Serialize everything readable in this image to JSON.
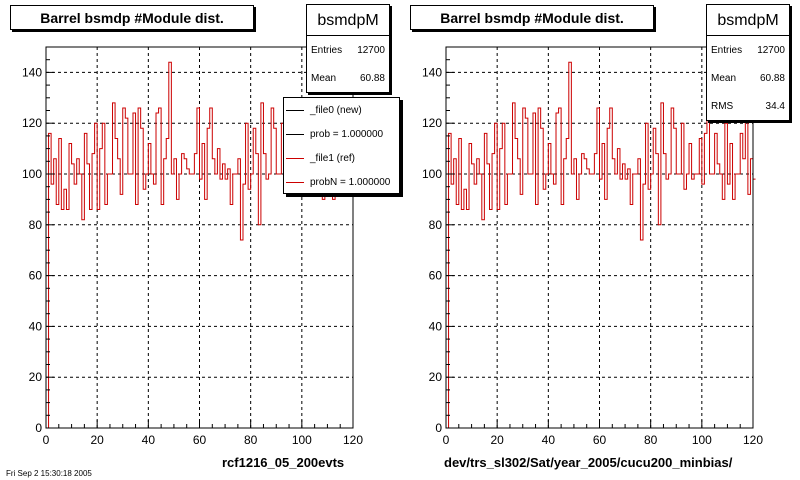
{
  "footer_stamp": "Fri Sep 2 15:30:18 2005",
  "chart_data": [
    {
      "type": "bar",
      "title": "Barrel bsmdp #Module dist.",
      "xlabel": "rcf1216_05_200evts",
      "ylabel": "",
      "xlim": [
        0,
        120
      ],
      "ylim": [
        0,
        150
      ],
      "xticks": [
        0,
        20,
        40,
        60,
        80,
        100,
        120
      ],
      "yticks": [
        0,
        20,
        40,
        60,
        80,
        100,
        120,
        140
      ],
      "grid": true,
      "stats": {
        "name": "bsmdpM",
        "rows": [
          {
            "label": "Entries",
            "value": "12700"
          },
          {
            "label": "Mean",
            "value": "60.88"
          }
        ]
      },
      "legend": {
        "placement": "top-right",
        "entries": [
          {
            "label": "_file0 (new)",
            "color": "#000000"
          },
          {
            "label": "prob = 1.000000",
            "color": "#000000"
          },
          {
            "label": "_file1 (ref)",
            "color": "#cc0000"
          },
          {
            "label": "probN = 1.000000",
            "color": "#cc0000"
          }
        ]
      },
      "series": [
        {
          "color": "#cc0000",
          "bin_width": 1,
          "x_start": 0,
          "values": [
            0,
            116,
            96,
            106,
            88,
            114,
            86,
            94,
            86,
            112,
            104,
            96,
            106,
            100,
            82,
            116,
            104,
            86,
            108,
            120,
            86,
            110,
            120,
            88,
            100,
            100,
            128,
            114,
            106,
            92,
            126,
            122,
            100,
            100,
            124,
            88,
            126,
            118,
            94,
            100,
            112,
            100,
            96,
            124,
            126,
            88,
            106,
            114,
            144,
            100,
            106,
            90,
            100,
            108,
            106,
            102,
            100,
            100,
            108,
            126,
            98,
            112,
            90,
            118,
            126,
            106,
            100,
            110,
            98,
            104,
            98,
            102,
            88,
            100,
            100,
            106,
            74,
            96,
            120,
            94,
            100,
            118,
            108,
            80,
            128,
            108,
            98,
            100,
            126,
            118,
            100,
            100,
            120,
            94,
            100,
            112,
            98,
            100,
            100,
            114,
            96,
            116,
            128,
            100,
            100,
            116,
            104,
            100,
            90,
            120,
            96,
            112,
            90,
            100,
            100,
            116,
            106,
            128,
            92,
            106,
            98
          ]
        }
      ]
    },
    {
      "type": "bar",
      "title": "Barrel bsmdp #Module dist.",
      "xlabel": "dev/trs_sl302/Sat/year_2005/cucu200_minbias/",
      "ylabel": "",
      "xlim": [
        0,
        120
      ],
      "ylim": [
        0,
        150
      ],
      "xticks": [
        0,
        20,
        40,
        60,
        80,
        100,
        120
      ],
      "yticks": [
        0,
        20,
        40,
        60,
        80,
        100,
        120,
        140
      ],
      "grid": true,
      "stats": {
        "name": "bsmdpM",
        "rows": [
          {
            "label": "Entries",
            "value": "12700"
          },
          {
            "label": "Mean",
            "value": "60.88"
          },
          {
            "label": "RMS",
            "value": "34.4"
          }
        ]
      },
      "series": [
        {
          "color": "#cc0000",
          "bin_width": 1,
          "x_start": 0,
          "values": [
            0,
            116,
            96,
            106,
            88,
            114,
            86,
            94,
            86,
            112,
            104,
            96,
            106,
            100,
            82,
            116,
            104,
            86,
            108,
            120,
            86,
            110,
            120,
            88,
            100,
            100,
            128,
            114,
            106,
            92,
            126,
            122,
            100,
            100,
            124,
            88,
            126,
            118,
            94,
            100,
            112,
            100,
            96,
            124,
            126,
            88,
            106,
            114,
            144,
            100,
            106,
            90,
            100,
            108,
            106,
            102,
            100,
            100,
            108,
            126,
            98,
            112,
            90,
            118,
            126,
            106,
            100,
            110,
            98,
            104,
            98,
            102,
            88,
            100,
            100,
            106,
            74,
            96,
            120,
            94,
            100,
            118,
            108,
            80,
            128,
            108,
            98,
            100,
            126,
            118,
            100,
            100,
            120,
            94,
            100,
            112,
            98,
            100,
            100,
            114,
            96,
            116,
            128,
            100,
            100,
            116,
            104,
            100,
            90,
            120,
            96,
            112,
            90,
            100,
            100,
            116,
            106,
            128,
            92,
            106,
            98
          ]
        }
      ]
    }
  ]
}
